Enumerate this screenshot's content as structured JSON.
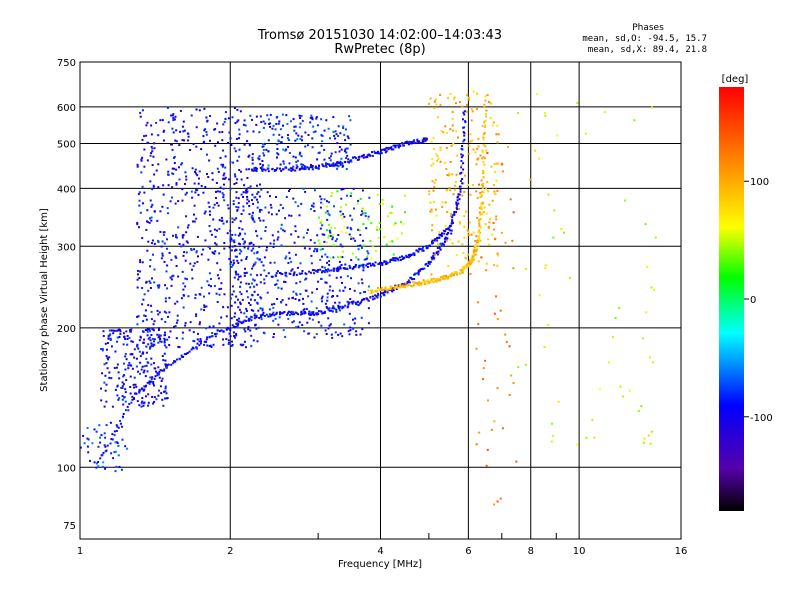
{
  "chart_data": {
    "type": "scatter",
    "title": "Tromsø 20151030 14:02:00–14:03:43",
    "subtitle": "RwPretec (8p)",
    "phase_box": {
      "title": "Phases",
      "line1": "mean, sd,O:  -94.5, 15.7",
      "line2": "mean, sd,X:   89.4, 21.8"
    },
    "xlabel": "Frequency [MHz]",
    "ylabel": "Stationary phase Virtual Height [km]",
    "xscale": "log",
    "yscale": "log",
    "xlim": [
      1,
      16
    ],
    "ylim": [
      70,
      750
    ],
    "xticks": [
      1,
      2,
      4,
      6,
      8,
      10,
      16
    ],
    "yticks": [
      75,
      100,
      200,
      300,
      400,
      500,
      600,
      750
    ],
    "grid": true,
    "colorbar": {
      "label": "[deg]",
      "range": [
        -180,
        180
      ],
      "ticks": [
        100,
        0,
        -100
      ]
    },
    "traces": [
      {
        "name": "O-trace lower",
        "phase_deg": -95,
        "x": [
          1.1,
          1.3,
          1.5,
          1.8,
          2.2,
          2.6,
          3.0,
          3.5,
          4.0,
          4.5,
          5.0,
          5.5,
          5.8,
          5.9
        ],
        "y": [
          105,
          145,
          165,
          190,
          210,
          215,
          215,
          225,
          235,
          250,
          275,
          320,
          400,
          600
        ]
      },
      {
        "name": "X-trace",
        "phase_deg": 90,
        "x": [
          3.8,
          4.3,
          4.8,
          5.3,
          5.8,
          6.1,
          6.3,
          6.4,
          6.5
        ],
        "y": [
          240,
          245,
          250,
          255,
          265,
          280,
          310,
          400,
          640
        ]
      },
      {
        "name": "O-trace multi-hop",
        "phase_deg": -95,
        "x": [
          2.2,
          2.6,
          3.0,
          3.5,
          4.0,
          4.5,
          5.0
        ],
        "y": [
          440,
          440,
          445,
          460,
          480,
          500,
          510
        ]
      },
      {
        "name": "O-trace mid",
        "phase_deg": -95,
        "x": [
          2.4,
          3.0,
          3.5,
          4.0,
          4.5,
          5.0,
          5.5
        ],
        "y": [
          260,
          265,
          270,
          275,
          285,
          300,
          330
        ]
      }
    ],
    "scatter_clusters": [
      {
        "xr": [
          1.3,
          2.3
        ],
        "yr": [
          180,
          600
        ],
        "n": 700,
        "phase_deg": -95
      },
      {
        "xr": [
          1.1,
          1.5
        ],
        "yr": [
          135,
          200
        ],
        "n": 250,
        "phase_deg": -95
      },
      {
        "xr": [
          1.0,
          1.25
        ],
        "yr": [
          98,
          125
        ],
        "n": 50,
        "phase_deg": -80
      },
      {
        "xr": [
          2.0,
          3.8
        ],
        "yr": [
          190,
          400
        ],
        "n": 450,
        "phase_deg": -90
      },
      {
        "xr": [
          2.3,
          3.5
        ],
        "yr": [
          440,
          580
        ],
        "n": 180,
        "phase_deg": -85
      },
      {
        "xr": [
          3.0,
          4.5
        ],
        "yr": [
          280,
          400
        ],
        "n": 80,
        "phase_deg": 40
      },
      {
        "xr": [
          5.0,
          6.9
        ],
        "yr": [
          260,
          650
        ],
        "n": 220,
        "phase_deg": 95
      },
      {
        "xr": [
          6.2,
          7.5
        ],
        "yr": [
          80,
          500
        ],
        "n": 50,
        "phase_deg": 120
      },
      {
        "xr": [
          7.5,
          14.5
        ],
        "yr": [
          110,
          650
        ],
        "n": 60,
        "phase_deg": 60
      }
    ]
  },
  "colors": {
    "gridline": "#000000",
    "axis": "#000000",
    "background": "#ffffff"
  }
}
